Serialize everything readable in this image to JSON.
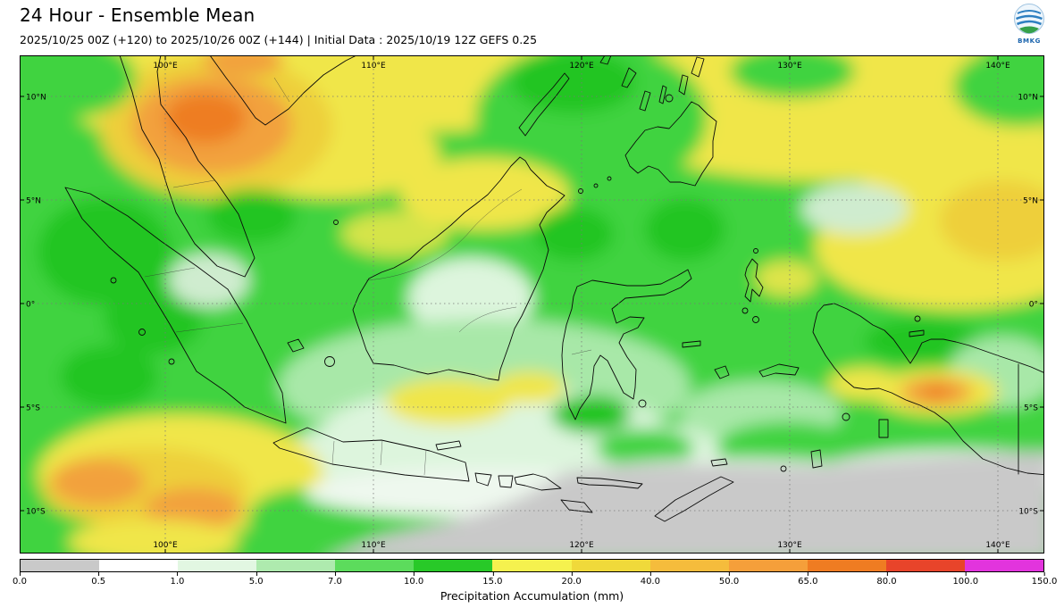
{
  "header": {
    "title": "24 Hour - Ensemble Mean",
    "subtitle": "2025/10/25 00Z (+120) to 2025/10/26 00Z (+144) | Initial Data : 2025/10/19 12Z GEFS 0.25",
    "logo_text": "BMKG"
  },
  "map": {
    "top_lon_labels": [
      "100°E",
      "110°E",
      "120°E",
      "130°E",
      "140°E"
    ],
    "bottom_lon_labels": [
      "100°E",
      "110°E",
      "120°E",
      "130°E",
      "140°E"
    ],
    "left_lat_labels": [
      "10°N",
      "5°N",
      "0°",
      "5°S",
      "10°S"
    ],
    "right_lat_labels": [
      "10°N",
      "5°N",
      "0°",
      "5°S",
      "10°S"
    ]
  },
  "colorbar": {
    "label": "Precipitation Accumulation (mm)",
    "ticks": [
      "0.0",
      "0.5",
      "1.0",
      "5.0",
      "7.0",
      "10.0",
      "15.0",
      "20.0",
      "40.0",
      "50.0",
      "65.0",
      "80.0",
      "100.0",
      "150.0"
    ],
    "colors": [
      "#c9c9c9",
      "#ffffff",
      "#e2f7e2",
      "#aeeaae",
      "#5cdc5c",
      "#28c928",
      "#f5f14e",
      "#f0d93a",
      "#f5bc3c",
      "#f59f3a",
      "#ef7c22",
      "#e8442a",
      "#e234dd"
    ]
  },
  "chart_data": {
    "type": "heatmap",
    "title": "24 Hour - Ensemble Mean",
    "valid_period": "2025/10/25 00Z (+120) to 2025/10/26 00Z (+144)",
    "initial_data": "2025/10/19 12Z GEFS 0.25",
    "variable": "Precipitation Accumulation (mm)",
    "x_tick_labels": [
      "100°E",
      "110°E",
      "120°E",
      "130°E",
      "140°E"
    ],
    "y_tick_labels": [
      "10°N",
      "5°N",
      "0°",
      "5°S",
      "10°S"
    ],
    "extent": {
      "lon": [
        93.0,
        142.3
      ],
      "lat": [
        -12.0,
        12.0
      ]
    },
    "grid": "dotted graticule every 10 deg longitude and 5 deg latitude",
    "legend_position": "bottom horizontal colorbar",
    "levels_mm": [
      0.0,
      0.5,
      1.0,
      5.0,
      7.0,
      10.0,
      15.0,
      20.0,
      40.0,
      50.0,
      65.0,
      80.0,
      100.0,
      150.0
    ],
    "level_colors": [
      "#c9c9c9",
      "#ffffff",
      "#e2f7e2",
      "#aeeaae",
      "#5cdc5c",
      "#28c928",
      "#f5f14e",
      "#f0d93a",
      "#f5bc3c",
      "#f59f3a",
      "#ef7c22",
      "#e8442a",
      "#e234dd"
    ],
    "features": [
      {
        "region": "Southern Thailand / upper Malay Peninsula (~99-104E, 8-12N)",
        "value_mm": "40-65, orange maximum"
      },
      {
        "region": "Broad band over South China Sea and Philippine Sea (5-12N)",
        "value_mm": "15-40, yellow"
      },
      {
        "region": "Most of Sumatra, Borneo, Sulawesi, Maluku and nearby seas",
        "value_mm": "7-15, green"
      },
      {
        "region": "Central Borneo and Malacca Strait patches",
        "value_mm": "1-5, pale green"
      },
      {
        "region": "Java Sea / Java / Banda Sea",
        "value_mm": "0.5-7, white to pale green"
      },
      {
        "region": "Indian Ocean southwest of Sumatra (~95-101E, 5-10S)",
        "value_mm": "20-65, yellow with orange cores"
      },
      {
        "region": "Southern Papua localized spot (~137-139E, 4-5S)",
        "value_mm": "50-80, orange core"
      },
      {
        "region": "Timor / Arafura seas and far south (9-12S)",
        "value_mm": "0-0.5, gray"
      }
    ]
  }
}
